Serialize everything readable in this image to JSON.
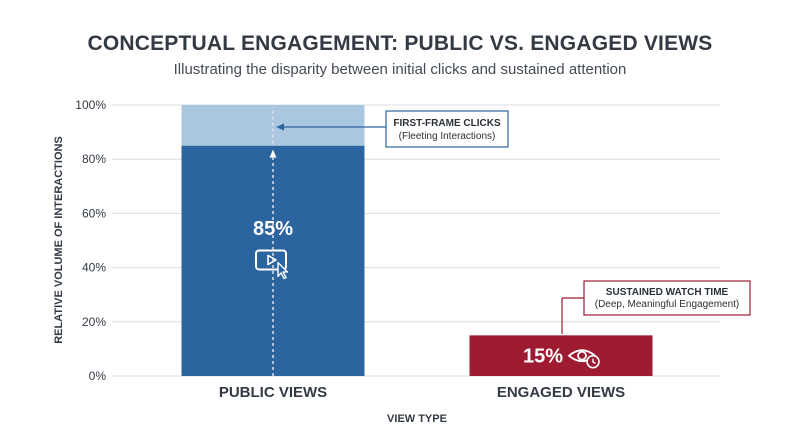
{
  "chart_data": {
    "type": "bar",
    "title": "CONCEPTUAL ENGAGEMENT: PUBLIC VS. ENGAGED VIEWS",
    "subtitle": "Illustrating the disparity between initial clicks and sustained attention",
    "xlabel": "VIEW TYPE",
    "ylabel": "RELATIVE VOLUME OF INTERACTIONS",
    "ylim": [
      0,
      100
    ],
    "yticks": [
      0,
      20,
      40,
      60,
      80,
      100
    ],
    "ytick_labels": [
      "0%",
      "20%",
      "40%",
      "60%",
      "80%",
      "100%"
    ],
    "grid": true,
    "categories": [
      "PUBLIC VIEWS",
      "ENGAGED VIEWS"
    ],
    "values": [
      85,
      15
    ],
    "value_labels": [
      "85%",
      "15%"
    ],
    "stack_top": {
      "category": "PUBLIC VIEWS",
      "from": 85,
      "to": 100
    },
    "annotations": {
      "first_frame": {
        "heading": "FIRST-FRAME CLICKS",
        "text": "(Fleeting Interactions)"
      },
      "sustained": {
        "heading": "SUSTAINED WATCH TIME",
        "text": "(Deep, Meaningful Engagement)"
      }
    },
    "colors": {
      "public_bar": "#2c64a0",
      "public_top": "#abc6e0",
      "engaged_bar": "#9e1b32",
      "text": "#333a44",
      "grid": "#dcdcdc"
    },
    "icons": [
      "play-cursor-icon",
      "eye-clock-icon"
    ]
  }
}
